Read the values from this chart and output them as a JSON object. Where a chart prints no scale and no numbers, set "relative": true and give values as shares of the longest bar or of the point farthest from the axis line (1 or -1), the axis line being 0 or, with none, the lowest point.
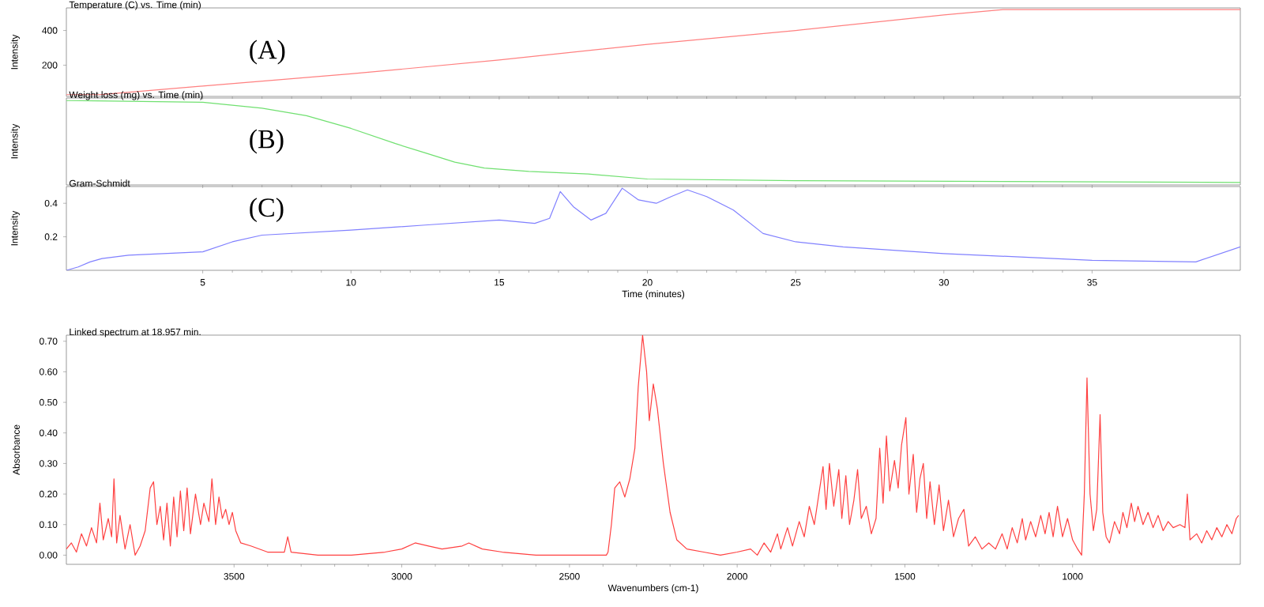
{
  "chart_data": [
    {
      "type": "line",
      "title": "Temperature (C)  vs. Time (min)",
      "ylabel": "Intensity",
      "annotations": [
        "(A)"
      ],
      "xlim": [
        0.4,
        40
      ],
      "ylim": [
        20,
        530
      ],
      "xticks": [
        5,
        10,
        15,
        20,
        25,
        30,
        35
      ],
      "yticks": [
        200,
        400
      ],
      "tick_labels": "y",
      "x": [
        0.4,
        1.5,
        5,
        10,
        15,
        20,
        25,
        30,
        32,
        40
      ],
      "series": [
        {
          "color": "#ff8080",
          "values": [
            30,
            30,
            80,
            150,
            230,
            320,
            400,
            490,
            520,
            520
          ]
        }
      ]
    },
    {
      "type": "line",
      "title": "Weight loss (mg) vs. Time (min)",
      "ylabel": "Intensity",
      "annotations": [
        "(B)"
      ],
      "xlim": [
        0.4,
        40
      ],
      "xticks": [
        5,
        10,
        15,
        20,
        25,
        30,
        35
      ],
      "tick_labels": false,
      "relative": true,
      "x": [
        0.4,
        5,
        7,
        8.5,
        10,
        11.5,
        12.5,
        13.5,
        14.5,
        16,
        18,
        20,
        25,
        40
      ],
      "series": [
        {
          "color": "#70e070",
          "values": [
            1.0,
            0.98,
            0.91,
            0.82,
            0.67,
            0.49,
            0.38,
            0.27,
            0.2,
            0.16,
            0.13,
            0.07,
            0.05,
            0.03
          ]
        }
      ]
    },
    {
      "type": "line",
      "title": "Gram-Schmidt",
      "xlabel": "Time (minutes)",
      "ylabel": "Intensity",
      "annotations": [
        "(C)"
      ],
      "xlim": [
        0.4,
        40
      ],
      "ylim": [
        0,
        0.5
      ],
      "xticks": [
        5,
        10,
        15,
        20,
        25,
        30,
        35
      ],
      "yticks": [
        0.2,
        0.4
      ],
      "x": [
        0.4,
        0.8,
        1.2,
        1.6,
        2.5,
        5,
        6,
        7,
        10,
        12.5,
        15,
        16.2,
        16.7,
        17.06,
        17.5,
        18.1,
        18.6,
        19.15,
        19.7,
        20.3,
        20.8,
        21.35,
        22,
        22.9,
        23.9,
        25,
        26.6,
        30,
        35,
        38.5,
        40
      ],
      "series": [
        {
          "color": "#8080ff",
          "values": [
            0.0,
            0.02,
            0.05,
            0.07,
            0.09,
            0.11,
            0.17,
            0.21,
            0.24,
            0.27,
            0.3,
            0.28,
            0.31,
            0.47,
            0.38,
            0.3,
            0.34,
            0.49,
            0.42,
            0.4,
            0.44,
            0.48,
            0.44,
            0.36,
            0.22,
            0.17,
            0.14,
            0.1,
            0.06,
            0.05,
            0.14
          ]
        }
      ]
    },
    {
      "type": "line",
      "title": "Linked spectrum at 18.957 min.",
      "xlabel": "Wavenumbers (cm-1)",
      "ylabel": "Absorbance",
      "xlim": [
        4000,
        500
      ],
      "ylim": [
        -0.03,
        0.72
      ],
      "xticks": [
        3500,
        3000,
        2500,
        2000,
        1500,
        1000
      ],
      "yticks": [
        {
          "value": 0,
          "label": "0.00"
        },
        {
          "value": 0.1,
          "label": "0.10"
        },
        {
          "value": 0.2,
          "label": "0.20"
        },
        {
          "value": 0.3,
          "label": "0.30"
        },
        {
          "value": 0.4,
          "label": "0.40"
        },
        {
          "value": 0.5,
          "label": "0.50"
        },
        {
          "value": 0.6,
          "label": "0.60"
        },
        {
          "value": 0.7,
          "label": "0.70"
        }
      ],
      "x": [
        4000,
        3985,
        3970,
        3955,
        3940,
        3925,
        3910,
        3900,
        3890,
        3875,
        3865,
        3858,
        3850,
        3840,
        3825,
        3810,
        3795,
        3780,
        3765,
        3750,
        3740,
        3730,
        3720,
        3710,
        3700,
        3690,
        3680,
        3670,
        3660,
        3650,
        3640,
        3630,
        3615,
        3600,
        3590,
        3575,
        3566,
        3555,
        3545,
        3535,
        3525,
        3515,
        3505,
        3495,
        3480,
        3450,
        3400,
        3350,
        3340,
        3330,
        3250,
        3150,
        3050,
        3000,
        2960,
        2920,
        2880,
        2820,
        2800,
        2760,
        2700,
        2600,
        2450,
        2390,
        2385,
        2375,
        2365,
        2350,
        2335,
        2320,
        2305,
        2295,
        2282,
        2270,
        2262,
        2250,
        2238,
        2220,
        2200,
        2180,
        2150,
        2100,
        2050,
        2000,
        1960,
        1940,
        1920,
        1900,
        1880,
        1870,
        1850,
        1835,
        1815,
        1800,
        1785,
        1770,
        1755,
        1744,
        1735,
        1725,
        1712,
        1697,
        1688,
        1676,
        1665,
        1652,
        1641,
        1630,
        1615,
        1600,
        1586,
        1575,
        1565,
        1555,
        1545,
        1531,
        1520,
        1510,
        1497,
        1488,
        1475,
        1465,
        1455,
        1445,
        1435,
        1425,
        1412,
        1398,
        1385,
        1370,
        1355,
        1340,
        1324,
        1310,
        1290,
        1270,
        1250,
        1230,
        1210,
        1195,
        1180,
        1165,
        1150,
        1140,
        1125,
        1110,
        1095,
        1082,
        1070,
        1058,
        1045,
        1030,
        1015,
        1000,
        985,
        973,
        965,
        957,
        948,
        938,
        928,
        918,
        910,
        900,
        890,
        875,
        860,
        850,
        838,
        825,
        815,
        805,
        790,
        775,
        760,
        745,
        730,
        715,
        700,
        680,
        665,
        658,
        650,
        630,
        615,
        600,
        585,
        570,
        555,
        540,
        525,
        512,
        505
      ],
      "series": [
        {
          "color": "#ff4040",
          "values": [
            0.02,
            0.04,
            0.01,
            0.07,
            0.03,
            0.09,
            0.04,
            0.17,
            0.05,
            0.12,
            0.06,
            0.25,
            0.04,
            0.13,
            0.02,
            0.1,
            0.0,
            0.03,
            0.08,
            0.22,
            0.24,
            0.1,
            0.16,
            0.05,
            0.17,
            0.03,
            0.19,
            0.06,
            0.21,
            0.08,
            0.22,
            0.07,
            0.2,
            0.1,
            0.17,
            0.11,
            0.25,
            0.1,
            0.19,
            0.12,
            0.15,
            0.1,
            0.14,
            0.08,
            0.04,
            0.03,
            0.01,
            0.01,
            0.06,
            0.01,
            0.0,
            0.0,
            0.01,
            0.02,
            0.04,
            0.03,
            0.02,
            0.03,
            0.04,
            0.02,
            0.01,
            0.0,
            0.0,
            0.0,
            0.01,
            0.1,
            0.22,
            0.24,
            0.19,
            0.25,
            0.35,
            0.55,
            0.72,
            0.6,
            0.44,
            0.56,
            0.48,
            0.3,
            0.14,
            0.05,
            0.02,
            0.01,
            0.0,
            0.01,
            0.02,
            0.0,
            0.04,
            0.01,
            0.07,
            0.02,
            0.09,
            0.03,
            0.11,
            0.06,
            0.16,
            0.1,
            0.21,
            0.29,
            0.15,
            0.3,
            0.16,
            0.28,
            0.12,
            0.26,
            0.1,
            0.18,
            0.28,
            0.12,
            0.16,
            0.07,
            0.12,
            0.35,
            0.17,
            0.39,
            0.21,
            0.31,
            0.22,
            0.36,
            0.45,
            0.2,
            0.33,
            0.14,
            0.25,
            0.3,
            0.12,
            0.24,
            0.1,
            0.23,
            0.08,
            0.18,
            0.06,
            0.12,
            0.15,
            0.03,
            0.06,
            0.02,
            0.04,
            0.02,
            0.07,
            0.02,
            0.09,
            0.04,
            0.12,
            0.05,
            0.11,
            0.06,
            0.13,
            0.07,
            0.14,
            0.06,
            0.16,
            0.06,
            0.12,
            0.05,
            0.02,
            0.0,
            0.2,
            0.58,
            0.2,
            0.08,
            0.15,
            0.46,
            0.14,
            0.06,
            0.04,
            0.11,
            0.07,
            0.14,
            0.09,
            0.17,
            0.11,
            0.16,
            0.1,
            0.14,
            0.09,
            0.13,
            0.08,
            0.11,
            0.09,
            0.1,
            0.09,
            0.2,
            0.05,
            0.07,
            0.04,
            0.08,
            0.05,
            0.09,
            0.06,
            0.1,
            0.07,
            0.12,
            0.13
          ]
        }
      ]
    }
  ]
}
